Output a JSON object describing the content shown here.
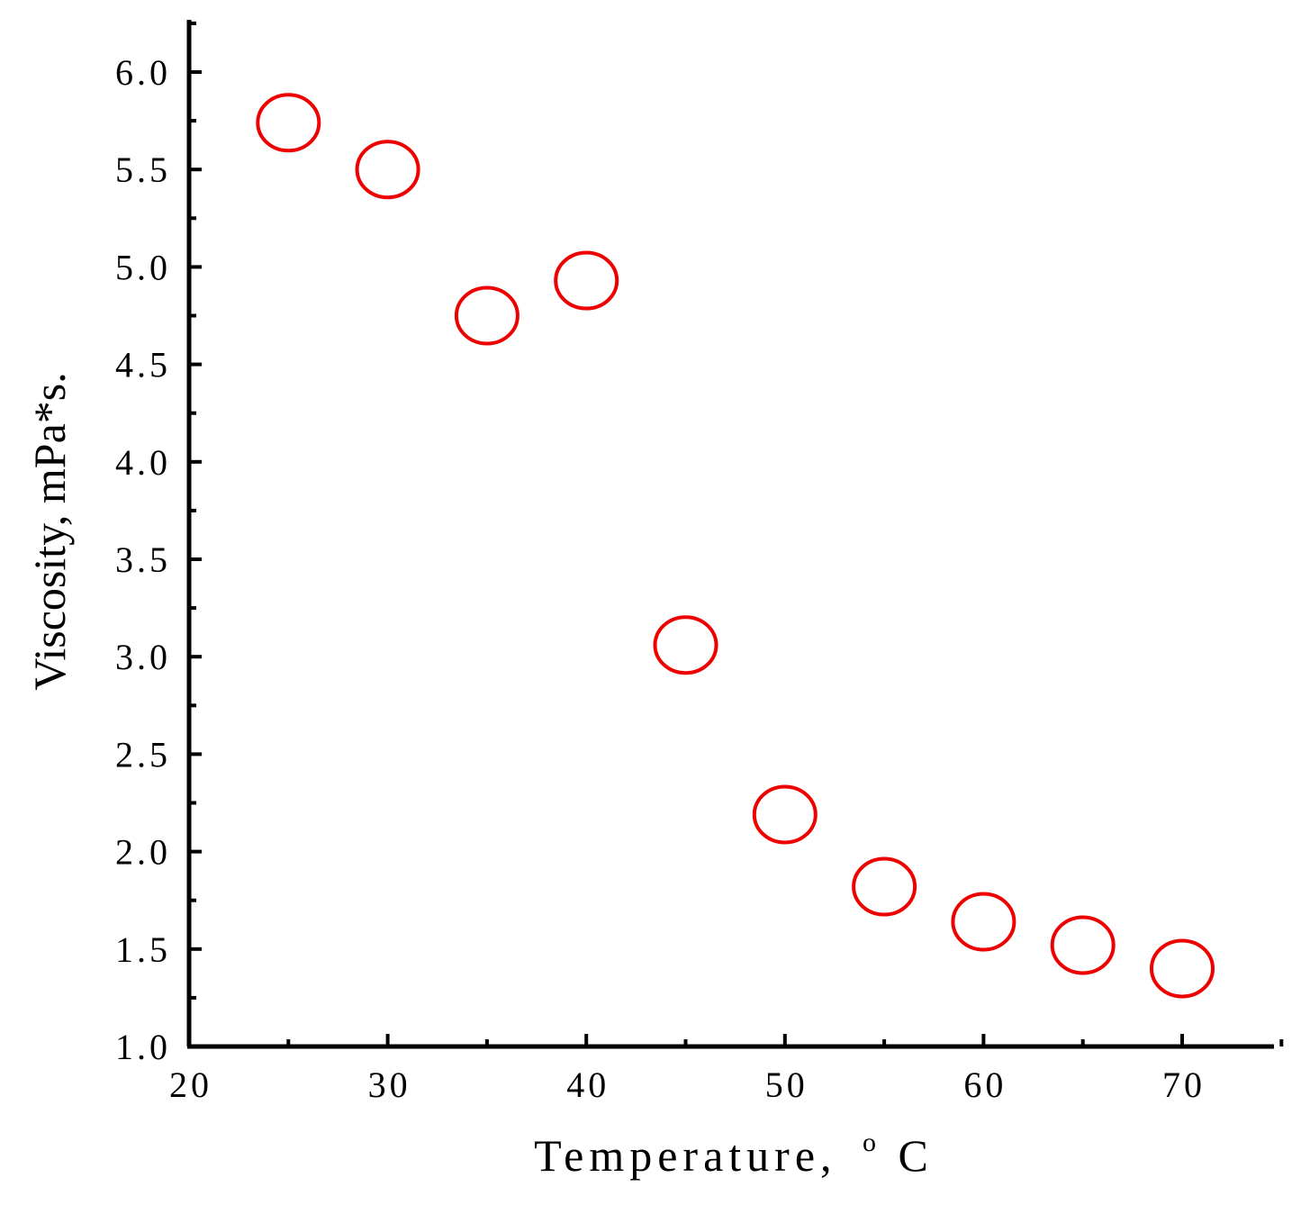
{
  "chart_data": {
    "type": "scatter",
    "xlabel": "Temperature,",
    "xlabel_superscript": "o",
    "xlabel_unit": "C",
    "ylabel": "Viscosity, mPa*s.",
    "xlim": [
      20,
      75
    ],
    "ylim": [
      1.0,
      6.25
    ],
    "x_ticks": [
      20,
      30,
      40,
      50,
      60,
      70
    ],
    "x_tick_labels": [
      "20",
      "30",
      "40",
      "50",
      "60",
      "70"
    ],
    "y_ticks": [
      1.0,
      1.5,
      2.0,
      2.5,
      3.0,
      3.5,
      4.0,
      4.5,
      5.0,
      5.5,
      6.0
    ],
    "y_tick_labels": [
      "1.0",
      "1.5",
      "2.0",
      "2.5",
      "3.0",
      "3.5",
      "4.0",
      "4.5",
      "5.0",
      "5.5",
      "6.0"
    ],
    "grid": false,
    "marker": "open-circle",
    "marker_color": "#ee0000",
    "axis_color": "#000000",
    "series": [
      {
        "x": [
          25,
          30,
          35,
          40,
          45,
          50,
          55,
          60,
          65,
          70
        ],
        "y": [
          5.74,
          5.5,
          4.75,
          4.93,
          3.06,
          2.19,
          1.82,
          1.64,
          1.52,
          1.4
        ]
      }
    ]
  }
}
